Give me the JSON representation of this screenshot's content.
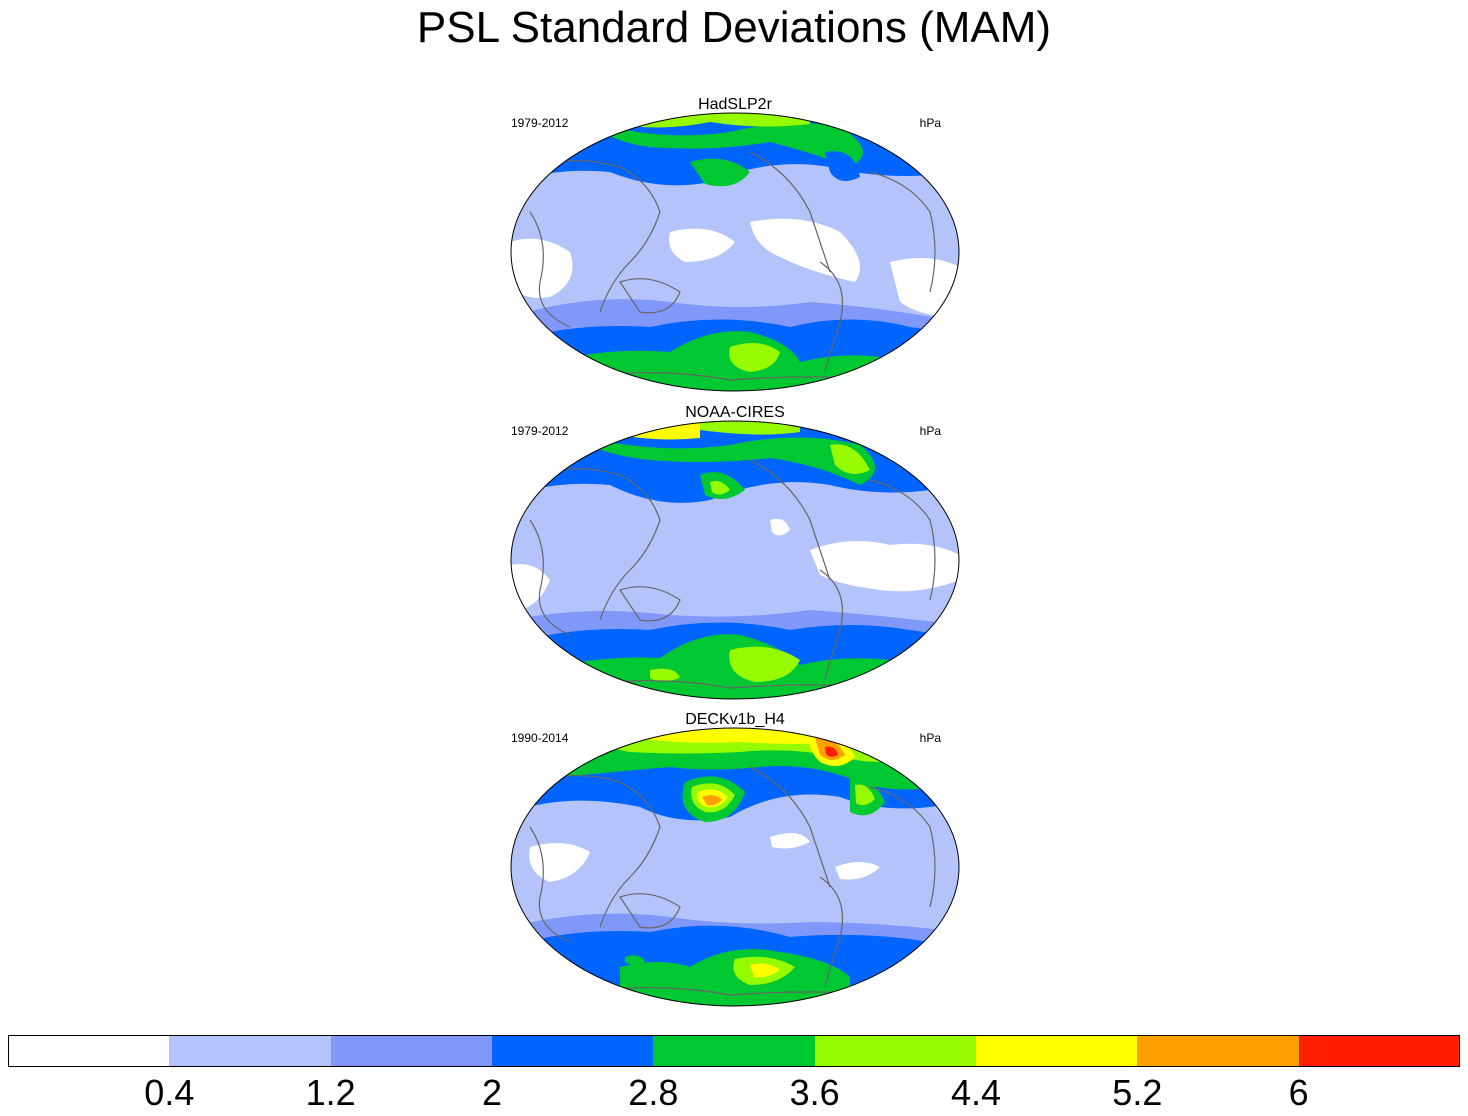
{
  "title": "PSL Standard Deviations (MAM)",
  "panels": [
    {
      "name": "HadSLP2r",
      "period": "1979-2012",
      "units": "hPa"
    },
    {
      "name": "NOAA-CIRES",
      "period": "1979-2012",
      "units": "hPa"
    },
    {
      "name": "DECKv1b_H4",
      "period": "1990-2014",
      "units": "hPa"
    }
  ],
  "colorbar": {
    "colors": [
      "#ffffff",
      "#b4c4fa",
      "#8098fa",
      "#0064ff",
      "#00c832",
      "#96fa00",
      "#ffff00",
      "#ffa000",
      "#ff1e00"
    ],
    "labels": [
      "0.4",
      "1.2",
      "2",
      "2.8",
      "3.6",
      "4.4",
      "5.2",
      "6"
    ]
  }
}
